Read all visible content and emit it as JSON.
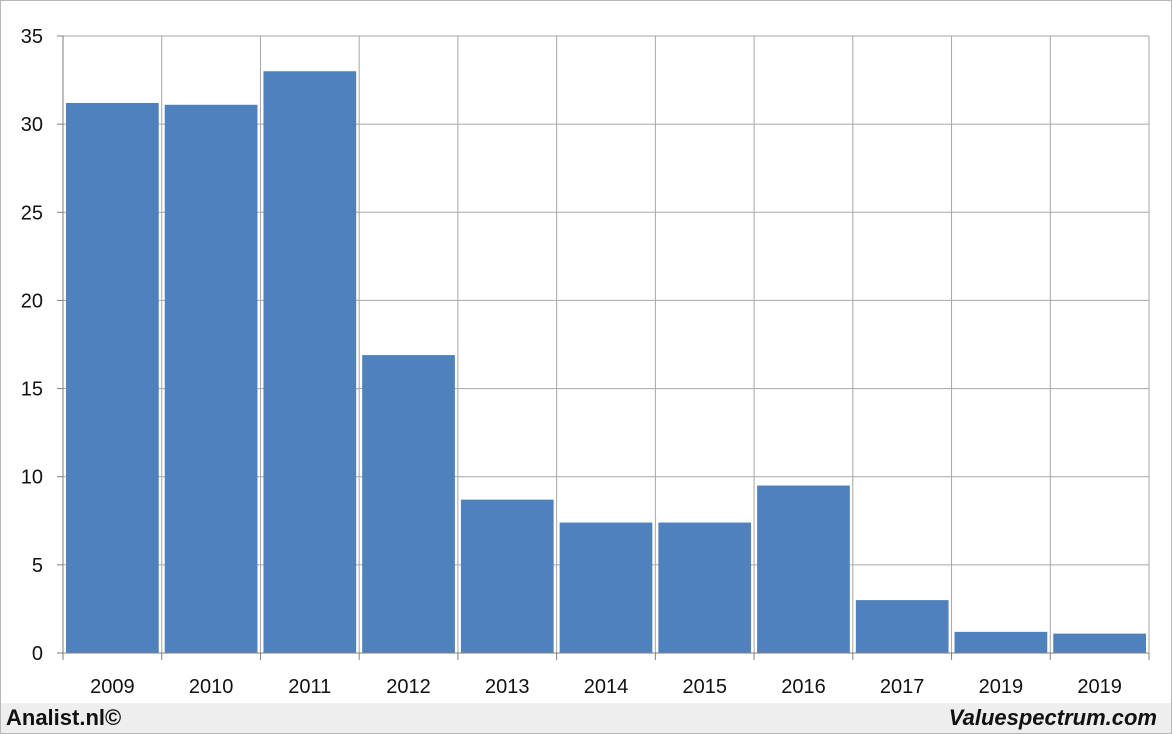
{
  "chart_data": {
    "type": "bar",
    "categories": [
      "2009",
      "2010",
      "2011",
      "2012",
      "2013",
      "2014",
      "2015",
      "2016",
      "2017",
      "2019",
      "2019"
    ],
    "values": [
      31.2,
      31.1,
      33.0,
      16.9,
      8.7,
      7.4,
      7.4,
      9.5,
      3.0,
      1.2,
      1.1
    ],
    "title": "",
    "xlabel": "",
    "ylabel": "",
    "ylim": [
      0,
      35
    ],
    "yticks": [
      0,
      5,
      10,
      15,
      20,
      25,
      30,
      35
    ],
    "grid": true,
    "bar_color": "#4f81bd",
    "grid_color": "#a6a6a6"
  },
  "footer": {
    "left_text": "Analist.nl©",
    "right_text": "Valuespectrum.com"
  }
}
